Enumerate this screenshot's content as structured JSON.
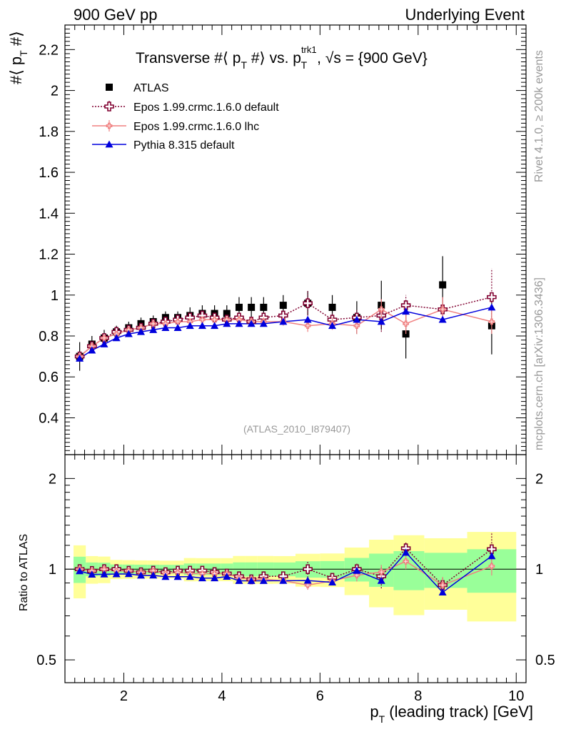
{
  "header": {
    "left": "900 GeV pp",
    "right": "Underlying Event"
  },
  "side_text": {
    "rivet": "Rivet 4.1.0, ≥ 200k events",
    "mcplots": "mcplots.cern.ch [arXiv:1306.3436]"
  },
  "chart_data": {
    "type": "scatter",
    "title": "Transverse #⟨ p_T #⟩ vs. p_T^trk1, √s = {900 GeV}",
    "title_parts": {
      "main": "Transverse #⟨ p",
      "sub1": "T",
      "mid": " #⟩ vs. p",
      "sup": "trk1",
      "sub2": "T",
      "end": ", √s = {900 GeV}"
    },
    "ylabel_parts": {
      "main": "#⟨ p",
      "sub": "T",
      "end": " #⟩"
    },
    "xlabel": "p_T (leading track) [GeV]",
    "xlabel_parts": {
      "p": "p",
      "sub": "T",
      "rest": " (leading track) [GeV]"
    },
    "ratio_ylabel": "Ratio to ATLAS",
    "analysis_id": "(ATLAS_2010_I879407)",
    "xlim": [
      0.8,
      10.2
    ],
    "ylim": [
      0.22,
      2.32
    ],
    "ratio_ylim": [
      0.42,
      2.4
    ],
    "x_ticks": [
      "2",
      "4",
      "6",
      "8",
      "10"
    ],
    "y_ticks": [
      "0.4",
      "0.6",
      "0.8",
      "1",
      "1.2",
      "1.4",
      "1.6",
      "1.8",
      "2",
      "2.2"
    ],
    "ratio_ticks": [
      "0.5",
      "1",
      "2"
    ],
    "x": [
      1.1,
      1.35,
      1.6,
      1.85,
      2.1,
      2.35,
      2.6,
      2.85,
      3.1,
      3.35,
      3.6,
      3.85,
      4.1,
      4.35,
      4.6,
      4.85,
      5.25,
      5.75,
      6.25,
      6.75,
      7.25,
      7.75,
      8.5,
      9.5
    ],
    "series": [
      {
        "name": "ATLAS",
        "values": [
          0.7,
          0.76,
          0.79,
          0.82,
          0.84,
          0.86,
          0.87,
          0.89,
          0.89,
          0.9,
          0.91,
          0.91,
          0.91,
          0.94,
          0.94,
          0.94,
          0.95,
          0.96,
          0.94,
          0.89,
          0.95,
          0.81,
          1.05,
          0.85
        ],
        "uncertainty": [
          0.07,
          0.04,
          0.04,
          0.03,
          0.03,
          0.03,
          0.03,
          0.03,
          0.03,
          0.04,
          0.04,
          0.04,
          0.04,
          0.05,
          0.05,
          0.05,
          0.05,
          0.06,
          0.06,
          0.08,
          0.12,
          0.12,
          0.14,
          0.14
        ],
        "style": "black-square"
      },
      {
        "name": "Epos 1.99.crmc.1.6.0 default",
        "values": [
          0.7,
          0.75,
          0.79,
          0.82,
          0.83,
          0.84,
          0.86,
          0.87,
          0.88,
          0.89,
          0.9,
          0.89,
          0.88,
          0.89,
          0.87,
          0.89,
          0.9,
          0.96,
          0.88,
          0.89,
          0.9,
          0.95,
          0.93,
          0.99
        ],
        "style": "open-cross-dotted"
      },
      {
        "name": "Epos 1.99.crmc.1.6.0 lhc",
        "values": [
          0.7,
          0.75,
          0.79,
          0.81,
          0.83,
          0.84,
          0.86,
          0.86,
          0.87,
          0.87,
          0.88,
          0.88,
          0.88,
          0.88,
          0.87,
          0.87,
          0.87,
          0.85,
          0.86,
          0.85,
          0.93,
          0.86,
          0.93,
          0.87
        ],
        "style": "small-cross-solid"
      },
      {
        "name": "Pythia 8.315 default",
        "values": [
          0.69,
          0.73,
          0.76,
          0.79,
          0.81,
          0.82,
          0.83,
          0.84,
          0.84,
          0.85,
          0.85,
          0.85,
          0.86,
          0.86,
          0.86,
          0.86,
          0.87,
          0.88,
          0.85,
          0.88,
          0.87,
          0.92,
          0.88,
          0.94
        ],
        "style": "blue-triangle"
      }
    ],
    "colors": {
      "atlas": "#000000",
      "epos_default": "#800030",
      "epos_lhc": "#f08080",
      "pythia": "#0000dd",
      "band_green": "#99ff99",
      "band_yellow": "#ffff99"
    }
  }
}
